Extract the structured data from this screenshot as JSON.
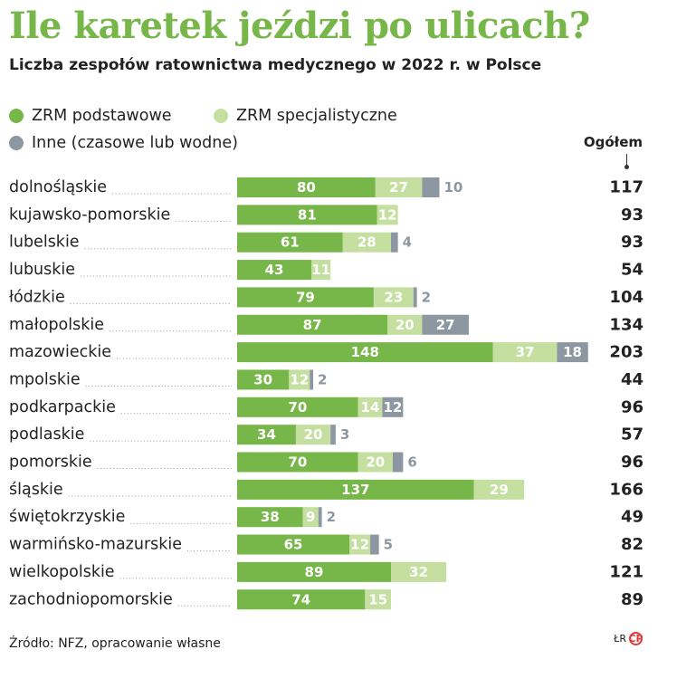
{
  "title": "Ile karetek jeździ po ulicach?",
  "subtitle": "Liczba zespołów ratownictwa medycznego w 2022 r. w Polsce",
  "legend": [
    {
      "label": "ZRM podstawowe",
      "color": "#77b648"
    },
    {
      "label": "ZRM specjalistyczne",
      "color": "#c4df9f"
    },
    {
      "label": "Inne (czasowe lub wodne)",
      "color": "#8c97a1"
    }
  ],
  "total_label": "Ogółem",
  "source": "Źródło: NFZ, opracowanie własne",
  "credit": {
    "author": "ŁR",
    "logo_text": "CP"
  },
  "chart_data": {
    "type": "bar",
    "stacked": true,
    "orientation": "horizontal",
    "categories": [
      "dolnośląskie",
      "kujawsko-pomorskie",
      "lubelskie",
      "lubuskie",
      "łódzkie",
      "małopolskie",
      "mazowieckie",
      "mpolskie",
      "podkarpackie",
      "podlaskie",
      "pomorskie",
      "śląskie",
      "świętokrzyskie",
      "warmińsko-mazurskie",
      "wielkopolskie",
      "zachodniopomorskie"
    ],
    "series": [
      {
        "name": "ZRM podstawowe",
        "color": "#77b648",
        "values": [
          80,
          81,
          61,
          43,
          79,
          87,
          148,
          30,
          70,
          34,
          70,
          137,
          38,
          65,
          89,
          74
        ]
      },
      {
        "name": "ZRM specjalistyczne",
        "color": "#c4df9f",
        "values": [
          27,
          12,
          28,
          11,
          23,
          20,
          37,
          12,
          14,
          20,
          20,
          29,
          9,
          12,
          32,
          15
        ]
      },
      {
        "name": "Inne (czasowe lub wodne)",
        "color": "#8c97a1",
        "values": [
          10,
          null,
          4,
          null,
          2,
          27,
          18,
          2,
          12,
          3,
          6,
          null,
          2,
          5,
          null,
          null
        ]
      }
    ],
    "totals": [
      117,
      93,
      93,
      54,
      104,
      134,
      203,
      44,
      96,
      57,
      96,
      166,
      49,
      82,
      121,
      89
    ],
    "xlim": [
      0,
      203
    ]
  }
}
